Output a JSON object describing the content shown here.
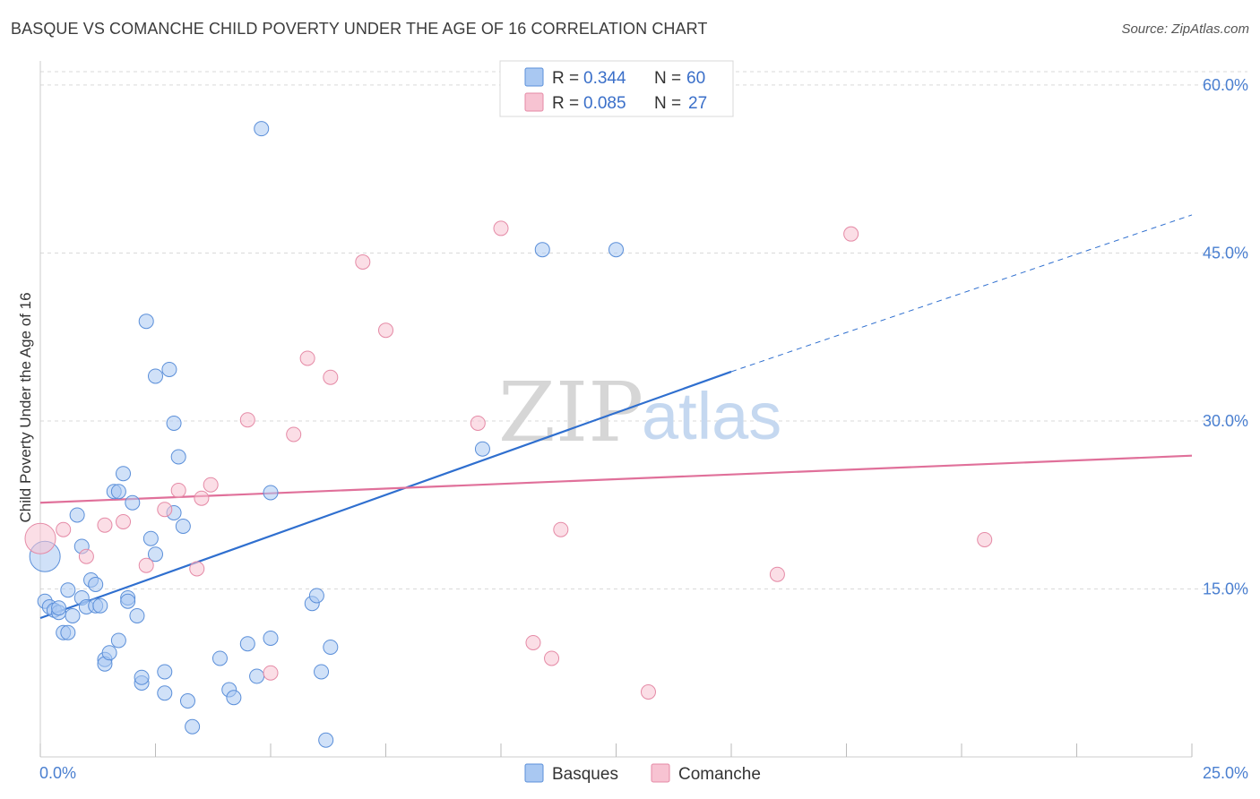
{
  "title": "BASQUE VS COMANCHE CHILD POVERTY UNDER THE AGE OF 16 CORRELATION CHART",
  "source": "Source: ZipAtlas.com",
  "watermark": {
    "zip": "ZIP",
    "atlas": "atlas"
  },
  "colors": {
    "basques_fill": "#a9c8f2",
    "basques_stroke": "#5b8fd9",
    "basques_line": "#2f6fcf",
    "comanche_fill": "#f7c3d2",
    "comanche_stroke": "#e58aa6",
    "comanche_line": "#e0709a",
    "grid": "#d9d9d9",
    "tick_label": "#4a7fd0"
  },
  "legend": {
    "rows": [
      {
        "r_label": "R = ",
        "r_value": "0.344",
        "n_label": "N = ",
        "n_value": "60"
      },
      {
        "r_label": "R = ",
        "r_value": "0.085",
        "n_label": "N = ",
        "n_value": "27"
      }
    ]
  },
  "bottom_legend": [
    "Basques",
    "Comanche"
  ],
  "chart_data": {
    "type": "scatter",
    "xlabel": "",
    "ylabel": "Child Poverty Under the Age of 16",
    "xlim": [
      0,
      25
    ],
    "ylim": [
      0,
      60
    ],
    "y_ticks": [
      15,
      30,
      45,
      60
    ],
    "y_tick_labels": [
      "15.0%",
      "30.0%",
      "45.0%",
      "60.0%"
    ],
    "x_tick_labels": [
      "0.0%",
      "25.0%"
    ],
    "grid": true,
    "series": [
      {
        "name": "Basques",
        "points": [
          [
            0.1,
            17.9
          ],
          [
            0.1,
            13.9
          ],
          [
            0.2,
            13.4
          ],
          [
            0.3,
            13.1
          ],
          [
            0.4,
            12.9
          ],
          [
            0.4,
            13.3
          ],
          [
            0.5,
            11.1
          ],
          [
            0.6,
            14.9
          ],
          [
            0.6,
            11.1
          ],
          [
            0.7,
            12.6
          ],
          [
            0.8,
            21.6
          ],
          [
            0.9,
            14.2
          ],
          [
            0.9,
            18.8
          ],
          [
            1.0,
            13.4
          ],
          [
            1.1,
            15.8
          ],
          [
            1.2,
            13.5
          ],
          [
            1.2,
            15.4
          ],
          [
            1.3,
            13.5
          ],
          [
            1.4,
            8.7
          ],
          [
            1.4,
            8.3
          ],
          [
            1.5,
            9.3
          ],
          [
            1.6,
            23.7
          ],
          [
            1.7,
            23.7
          ],
          [
            1.7,
            10.4
          ],
          [
            1.8,
            25.3
          ],
          [
            1.9,
            14.2
          ],
          [
            1.9,
            13.9
          ],
          [
            2.0,
            22.7
          ],
          [
            2.1,
            12.6
          ],
          [
            2.2,
            6.6
          ],
          [
            2.2,
            7.1
          ],
          [
            2.3,
            38.9
          ],
          [
            2.4,
            19.5
          ],
          [
            2.5,
            34.0
          ],
          [
            2.5,
            18.1
          ],
          [
            2.7,
            5.7
          ],
          [
            2.7,
            7.6
          ],
          [
            2.8,
            34.6
          ],
          [
            2.9,
            29.8
          ],
          [
            2.9,
            21.8
          ],
          [
            3.0,
            26.8
          ],
          [
            3.1,
            20.6
          ],
          [
            3.2,
            5.0
          ],
          [
            3.3,
            2.7
          ],
          [
            3.9,
            8.8
          ],
          [
            4.1,
            6.0
          ],
          [
            4.2,
            5.3
          ],
          [
            4.5,
            10.1
          ],
          [
            4.7,
            7.2
          ],
          [
            4.8,
            56.1
          ],
          [
            5.0,
            23.6
          ],
          [
            5.0,
            10.6
          ],
          [
            5.9,
            13.7
          ],
          [
            6.0,
            14.4
          ],
          [
            6.1,
            7.6
          ],
          [
            6.3,
            9.8
          ],
          [
            6.2,
            1.5
          ],
          [
            9.6,
            27.5
          ],
          [
            10.9,
            45.3
          ],
          [
            12.5,
            45.3
          ]
        ]
      },
      {
        "name": "Comanche",
        "points": [
          [
            0.0,
            19.5
          ],
          [
            0.5,
            20.3
          ],
          [
            1.0,
            17.9
          ],
          [
            1.4,
            20.7
          ],
          [
            1.8,
            21.0
          ],
          [
            2.3,
            17.1
          ],
          [
            2.7,
            22.1
          ],
          [
            3.0,
            23.8
          ],
          [
            3.4,
            16.8
          ],
          [
            3.5,
            23.1
          ],
          [
            3.7,
            24.3
          ],
          [
            4.5,
            30.1
          ],
          [
            5.0,
            7.5
          ],
          [
            5.5,
            28.8
          ],
          [
            5.8,
            35.6
          ],
          [
            6.3,
            33.9
          ],
          [
            7.0,
            44.2
          ],
          [
            7.5,
            38.1
          ],
          [
            9.5,
            29.8
          ],
          [
            10.0,
            47.2
          ],
          [
            10.7,
            10.2
          ],
          [
            11.1,
            8.8
          ],
          [
            11.3,
            20.3
          ],
          [
            13.2,
            5.8
          ],
          [
            16.0,
            16.3
          ],
          [
            17.6,
            46.7
          ],
          [
            20.5,
            19.4
          ]
        ]
      }
    ],
    "trendlines": [
      {
        "series": "Basques",
        "x": [
          0,
          15,
          25
        ],
        "y": [
          12.4,
          34.4,
          48.4
        ],
        "dashed_from": 15
      },
      {
        "series": "Comanche",
        "x": [
          0,
          25
        ],
        "y": [
          22.7,
          26.9
        ]
      }
    ]
  }
}
